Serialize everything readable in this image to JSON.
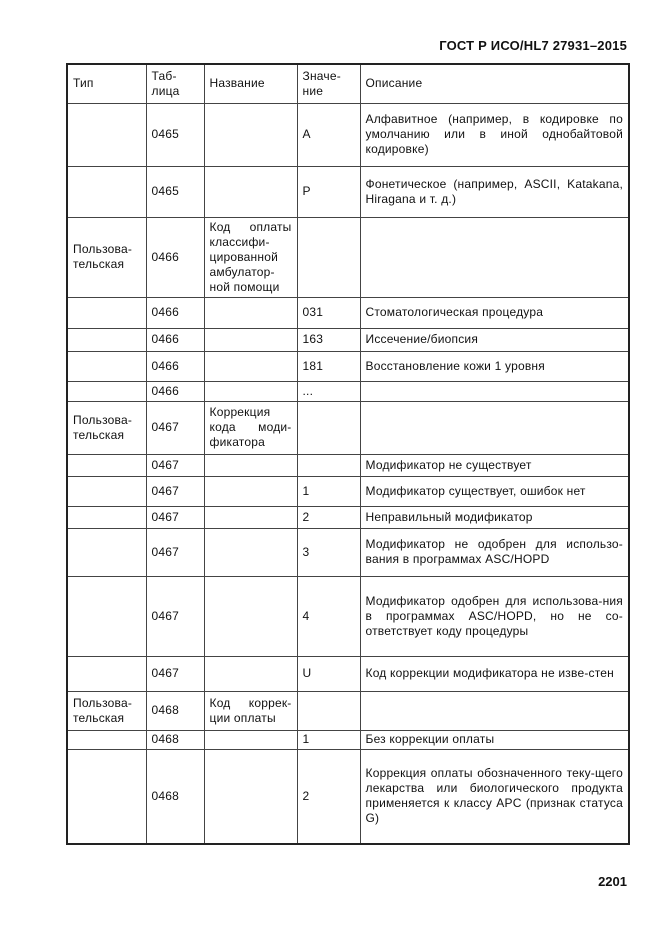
{
  "header": {
    "standard": "ГОСТ Р ИСО/HL7 27931–2015"
  },
  "table": {
    "columns": [
      "Тип",
      "Таб-лица",
      "Название",
      "Значе-ние",
      "Описание"
    ],
    "rows": [
      {
        "type": "",
        "table": "0465",
        "name": "",
        "value": "A",
        "description": "Алфавитное (например, в кодировке по умолчанию или в иной однобайтовой кодировке)"
      },
      {
        "type": "",
        "table": "0465",
        "name": "",
        "value": "P",
        "description": "Фонетическое (например, ASCII, Katakana, Hiragana и т. д.)"
      },
      {
        "type": "Пользова-тельская",
        "table": "0466",
        "name": "Код оплаты классифи-цированной амбулатор-ной помощи",
        "value": "",
        "description": ""
      },
      {
        "type": "",
        "table": "0466",
        "name": "",
        "value": "031",
        "description": "Стоматологическая процедура"
      },
      {
        "type": "",
        "table": "0466",
        "name": "",
        "value": "163",
        "description": "Иссечение/биопсия"
      },
      {
        "type": "",
        "table": "0466",
        "name": "",
        "value": "181",
        "description": "Восстановление кожи 1 уровня"
      },
      {
        "type": "",
        "table": "0466",
        "name": "",
        "value": "...",
        "description": ""
      },
      {
        "type": "Пользова-тельская",
        "table": "0467",
        "name": "Коррекция кода моди-фикатора",
        "value": "",
        "description": ""
      },
      {
        "type": "",
        "table": "0467",
        "name": "",
        "value": "",
        "description": "Модификатор не существует"
      },
      {
        "type": "",
        "table": "0467",
        "name": "",
        "value": "1",
        "description": "Модификатор существует, ошибок нет"
      },
      {
        "type": "",
        "table": "0467",
        "name": "",
        "value": "2",
        "description": "Неправильный модификатор"
      },
      {
        "type": "",
        "table": "0467",
        "name": "",
        "value": "3",
        "description": "Модификатор не одобрен для использо-вания в программах ASC/HOPD"
      },
      {
        "type": "",
        "table": "0467",
        "name": "",
        "value": "4",
        "description": "Модификатор одобрен для использова-ния в программах ASC/HOPD, но не со-ответствует коду процедуры"
      },
      {
        "type": "",
        "table": "0467",
        "name": "",
        "value": "U",
        "description": "Код коррекции модификатора не изве-стен"
      },
      {
        "type": "Пользова-тельская",
        "table": "0468",
        "name": "Код коррек-ции оплаты",
        "value": "",
        "description": ""
      },
      {
        "type": "",
        "table": "0468",
        "name": "",
        "value": "1",
        "description": "Без коррекции оплаты"
      },
      {
        "type": "",
        "table": "0468",
        "name": "",
        "value": "2",
        "description": "Коррекция оплаты обозначенного теку-щего лекарства или биологического продукта применяется к классу APC (признак статуса G)"
      }
    ]
  },
  "footer": {
    "page_number": "2201"
  }
}
